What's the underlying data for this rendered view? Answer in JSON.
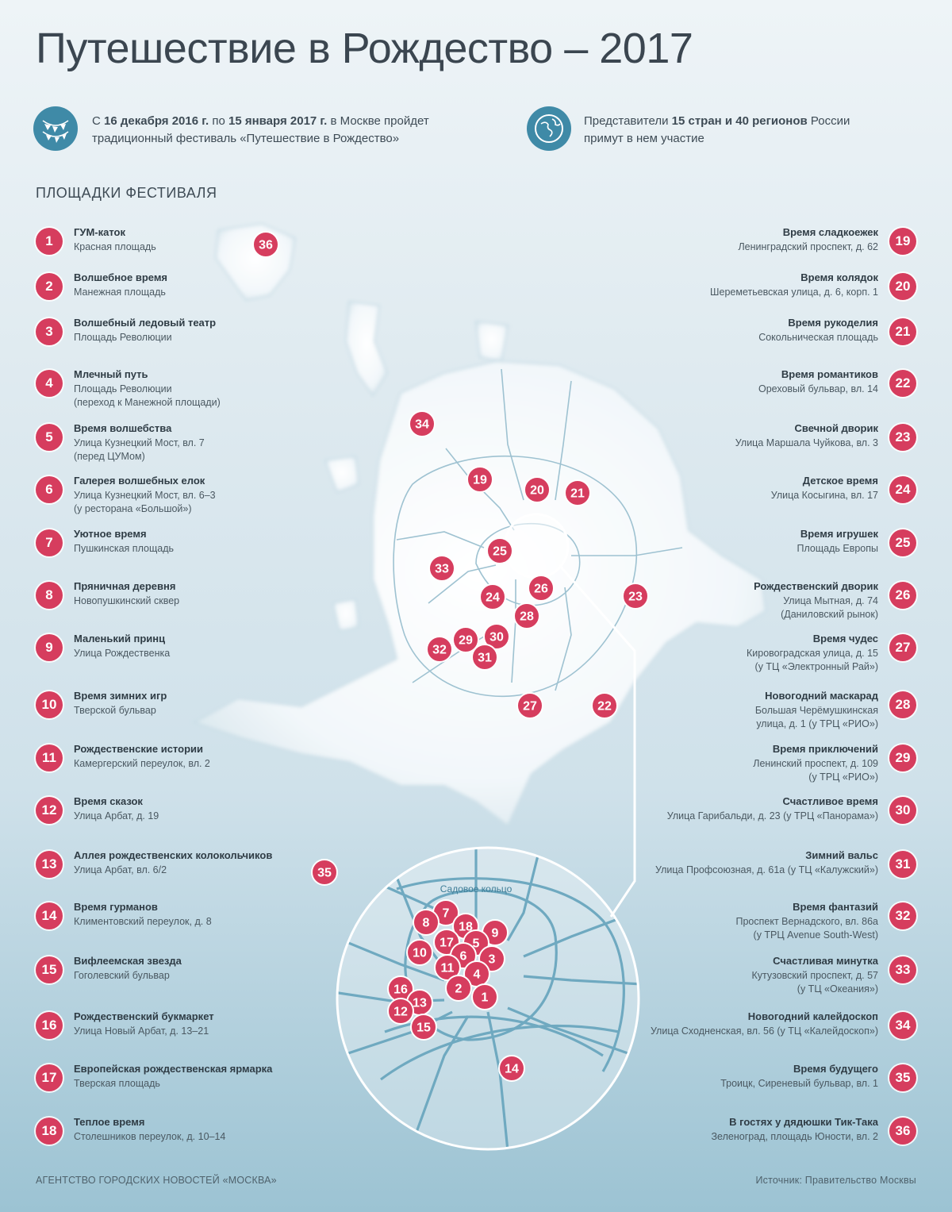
{
  "title": "Путешествие в Рождество – 2017",
  "intro": {
    "left": {
      "icon": "garland-icon",
      "p1": "С ",
      "b1": "16 декабря 2016 г.",
      "p2": " по ",
      "b2": "15 января 2017 г.",
      "p3": " в Москве пройдет",
      "line2": "традиционный фестиваль «Путешествие в Рождество»"
    },
    "right": {
      "icon": "globe-icon",
      "p1": "Представители ",
      "b1": "15 стран и 40 регионов",
      "p2": " России",
      "line2": "примут в нем участие"
    }
  },
  "section_title": "ПЛОЩАДКИ ФЕСТИВАЛЯ",
  "venues_left": [
    {
      "num": "1",
      "name": "ГУМ-каток",
      "addr": "Красная площадь"
    },
    {
      "num": "2",
      "name": "Волшебное время",
      "addr": "Манежная площадь"
    },
    {
      "num": "3",
      "name": "Волшебный ледовый театр",
      "addr": "Площадь Революции"
    },
    {
      "num": "4",
      "name": "Млечный путь",
      "addr": "Площадь Революции\n(переход к Манежной площади)"
    },
    {
      "num": "5",
      "name": "Время волшебства",
      "addr": "Улица Кузнецкий Мост, вл. 7\n(перед ЦУМом)"
    },
    {
      "num": "6",
      "name": "Галерея волшебных елок",
      "addr": "Улица Кузнецкий Мост, вл. 6–3\n(у ресторана «Большой»)"
    },
    {
      "num": "7",
      "name": "Уютное время",
      "addr": "Пушкинская площадь"
    },
    {
      "num": "8",
      "name": "Пряничная деревня",
      "addr": "Новопушкинский сквер"
    },
    {
      "num": "9",
      "name": "Маленький принц",
      "addr": "Улица Рождественка"
    },
    {
      "num": "10",
      "name": "Время зимних игр",
      "addr": "Тверской бульвар"
    },
    {
      "num": "11",
      "name": "Рождественские истории",
      "addr": "Камергерский переулок, вл. 2"
    },
    {
      "num": "12",
      "name": "Время сказок",
      "addr": "Улица Арбат, д. 19"
    },
    {
      "num": "13",
      "name": "Аллея рождественских колокольчиков",
      "addr": "Улица Арбат, вл. 6/2"
    },
    {
      "num": "14",
      "name": "Время гурманов",
      "addr": "Климентовский переулок, д. 8"
    },
    {
      "num": "15",
      "name": "Вифлеемская звезда",
      "addr": "Гоголевский бульвар"
    },
    {
      "num": "16",
      "name": "Рождественский букмаркет",
      "addr": "Улица Новый Арбат, д. 13–21"
    },
    {
      "num": "17",
      "name": "Европейская рождественская ярмарка",
      "addr": "Тверская площадь"
    },
    {
      "num": "18",
      "name": "Теплое время",
      "addr": "Столешников переулок, д. 10–14"
    }
  ],
  "venues_right": [
    {
      "num": "19",
      "name": "Время сладкоежек",
      "addr": "Ленинградский проспект, д. 62"
    },
    {
      "num": "20",
      "name": "Время колядок",
      "addr": "Шереметьевская улица, д. 6, корп. 1"
    },
    {
      "num": "21",
      "name": "Время рукоделия",
      "addr": "Сокольническая площадь"
    },
    {
      "num": "22",
      "name": "Время романтиков",
      "addr": "Ореховый бульвар, вл. 14"
    },
    {
      "num": "23",
      "name": "Свечной дворик",
      "addr": "Улица Маршала Чуйкова, вл. 3"
    },
    {
      "num": "24",
      "name": "Детское время",
      "addr": "Улица Косыгина, вл. 17"
    },
    {
      "num": "25",
      "name": "Время игрушек",
      "addr": "Площадь Европы"
    },
    {
      "num": "26",
      "name": "Рождественский дворик",
      "addr": "Улица Мытная, д. 74\n(Даниловский рынок)"
    },
    {
      "num": "27",
      "name": "Время чудес",
      "addr": "Кировоградская улица, д. 15\n(у ТЦ «Электронный Рай»)"
    },
    {
      "num": "28",
      "name": "Новогодний маскарад",
      "addr": "Большая Черёмушкинская\nулица, д. 1 (у ТРЦ «РИО»)"
    },
    {
      "num": "29",
      "name": "Время приключений",
      "addr": "Ленинский проспект, д. 109\n(у ТРЦ «РИО»)"
    },
    {
      "num": "30",
      "name": "Счастливое время",
      "addr": "Улица Гарибальди, д. 23 (у ТРЦ «Панорама»)"
    },
    {
      "num": "31",
      "name": "Зимний вальс",
      "addr": "Улица Профсоюзная, д. 61а (у ТЦ «Калужский»)"
    },
    {
      "num": "32",
      "name": "Время фантазий",
      "addr": "Проспект Вернадского, вл. 86а\n(у ТРЦ Avenue South-West)"
    },
    {
      "num": "33",
      "name": "Счастливая минутка",
      "addr": "Кутузовский проспект, д. 57\n(у ТЦ «Океания»)"
    },
    {
      "num": "34",
      "name": "Новогодний калейдоскоп",
      "addr": "Улица Сходненская, вл. 56 (у ТЦ «Калейдоскоп»)"
    },
    {
      "num": "35",
      "name": "Время будущего",
      "addr": "Троицк, Сиреневый бульвар, вл. 1"
    },
    {
      "num": "36",
      "name": "В гостях у дядюшки Тик-Така",
      "addr": "Зеленоград, площадь Юности, вл. 2"
    }
  ],
  "map": {
    "inset_label": "Садовое кольцо",
    "markers": [
      "36",
      "34",
      "19",
      "20",
      "21",
      "25",
      "33",
      "26",
      "24",
      "23",
      "28",
      "30",
      "29",
      "32",
      "31",
      "27",
      "22",
      "35",
      "7",
      "8",
      "18",
      "9",
      "17",
      "5",
      "10",
      "6",
      "3",
      "11",
      "4",
      "2",
      "1",
      "16",
      "13",
      "12",
      "15",
      "14"
    ]
  },
  "footer": {
    "agency": "АГЕНТСТВО ГОРОДСКИХ НОВОСТЕЙ «МОСКВА»",
    "source": "Источник: Правительство Москвы"
  },
  "colors": {
    "marker": "#d63d5e",
    "icon_bg": "#3f8aa7",
    "road": "#6fa9c0"
  }
}
